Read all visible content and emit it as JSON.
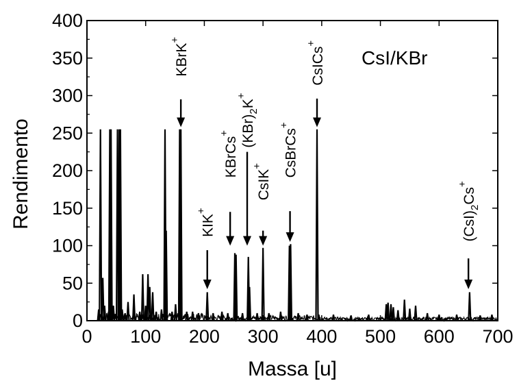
{
  "chart_data": {
    "type": "line",
    "title": "",
    "inset_label": "CsI/KBr",
    "xlabel": "Massa [u]",
    "ylabel": "Rendimento",
    "xlim": [
      0,
      700
    ],
    "ylim": [
      0,
      400
    ],
    "x_ticks": [
      0,
      100,
      200,
      300,
      400,
      500,
      600,
      700
    ],
    "y_ticks": [
      0,
      50,
      100,
      150,
      200,
      250,
      300,
      350,
      400
    ],
    "grid": false,
    "line_color": "#000000",
    "peaks": [
      {
        "x": 20,
        "y": 15
      },
      {
        "x": 23,
        "y": 255
      },
      {
        "x": 27,
        "y": 57
      },
      {
        "x": 30,
        "y": 20
      },
      {
        "x": 37,
        "y": 12
      },
      {
        "x": 39,
        "y": 255
      },
      {
        "x": 41,
        "y": 255
      },
      {
        "x": 45,
        "y": 20
      },
      {
        "x": 52,
        "y": 255
      },
      {
        "x": 55,
        "y": 255
      },
      {
        "x": 57,
        "y": 255
      },
      {
        "x": 60,
        "y": 15
      },
      {
        "x": 65,
        "y": 10
      },
      {
        "x": 70,
        "y": 25
      },
      {
        "x": 80,
        "y": 35
      },
      {
        "x": 90,
        "y": 12
      },
      {
        "x": 95,
        "y": 62
      },
      {
        "x": 100,
        "y": 20
      },
      {
        "x": 104,
        "y": 62
      },
      {
        "x": 107,
        "y": 45
      },
      {
        "x": 112,
        "y": 38
      },
      {
        "x": 118,
        "y": 12
      },
      {
        "x": 127,
        "y": 15
      },
      {
        "x": 133,
        "y": 255
      },
      {
        "x": 135,
        "y": 120
      },
      {
        "x": 145,
        "y": 12
      },
      {
        "x": 151,
        "y": 22
      },
      {
        "x": 158,
        "y": 255
      },
      {
        "x": 160,
        "y": 255
      },
      {
        "x": 170,
        "y": 12
      },
      {
        "x": 180,
        "y": 12
      },
      {
        "x": 190,
        "y": 10
      },
      {
        "x": 205,
        "y": 38
      },
      {
        "x": 215,
        "y": 10
      },
      {
        "x": 230,
        "y": 12
      },
      {
        "x": 240,
        "y": 10
      },
      {
        "x": 252,
        "y": 90
      },
      {
        "x": 254,
        "y": 88
      },
      {
        "x": 265,
        "y": 10
      },
      {
        "x": 275,
        "y": 85
      },
      {
        "x": 277,
        "y": 45
      },
      {
        "x": 290,
        "y": 10
      },
      {
        "x": 300,
        "y": 97
      },
      {
        "x": 310,
        "y": 10
      },
      {
        "x": 330,
        "y": 12
      },
      {
        "x": 345,
        "y": 100
      },
      {
        "x": 347,
        "y": 102
      },
      {
        "x": 360,
        "y": 10
      },
      {
        "x": 375,
        "y": 8
      },
      {
        "x": 392,
        "y": 255
      },
      {
        "x": 395,
        "y": 8
      },
      {
        "x": 420,
        "y": 8
      },
      {
        "x": 450,
        "y": 7
      },
      {
        "x": 480,
        "y": 8
      },
      {
        "x": 510,
        "y": 22
      },
      {
        "x": 513,
        "y": 24
      },
      {
        "x": 518,
        "y": 22
      },
      {
        "x": 522,
        "y": 18
      },
      {
        "x": 530,
        "y": 14
      },
      {
        "x": 541,
        "y": 28
      },
      {
        "x": 550,
        "y": 16
      },
      {
        "x": 560,
        "y": 20
      },
      {
        "x": 580,
        "y": 10
      },
      {
        "x": 600,
        "y": 8
      },
      {
        "x": 630,
        "y": 8
      },
      {
        "x": 652,
        "y": 38
      },
      {
        "x": 670,
        "y": 7
      },
      {
        "x": 690,
        "y": 8
      }
    ],
    "annotations": [
      {
        "base": "KBrK",
        "sub": "",
        "suffix": "",
        "x": 160,
        "label_y": 320,
        "arrow_top": 295,
        "arrow_tip": 258
      },
      {
        "base": "KIK",
        "sub": "",
        "suffix": "",
        "x": 205,
        "label_y": 106,
        "arrow_top": 94,
        "arrow_tip": 42
      },
      {
        "base": "KBrCs",
        "sub": "",
        "suffix": "",
        "x": 244,
        "label_y": 185,
        "arrow_top": 145,
        "arrow_tip": 100
      },
      {
        "base": "(KBr)",
        "sub": "2",
        "suffix": "K",
        "x": 273,
        "label_y": 225,
        "arrow_top": 225,
        "arrow_tip": 100
      },
      {
        "base": "CsIK",
        "sub": "",
        "suffix": "",
        "x": 300,
        "label_y": 155,
        "arrow_top": 120,
        "arrow_tip": 100
      },
      {
        "base": "CsBrCs",
        "sub": "",
        "suffix": "",
        "x": 346,
        "label_y": 185,
        "arrow_top": 146,
        "arrow_tip": 105
      },
      {
        "base": "CsICs",
        "sub": "",
        "suffix": "",
        "x": 392,
        "label_y": 308,
        "arrow_top": 296,
        "arrow_tip": 258
      },
      {
        "base": "(CsI)",
        "sub": "2",
        "suffix": "Cs",
        "x": 650,
        "label_y": 100,
        "arrow_top": 83,
        "arrow_tip": 42
      }
    ]
  }
}
